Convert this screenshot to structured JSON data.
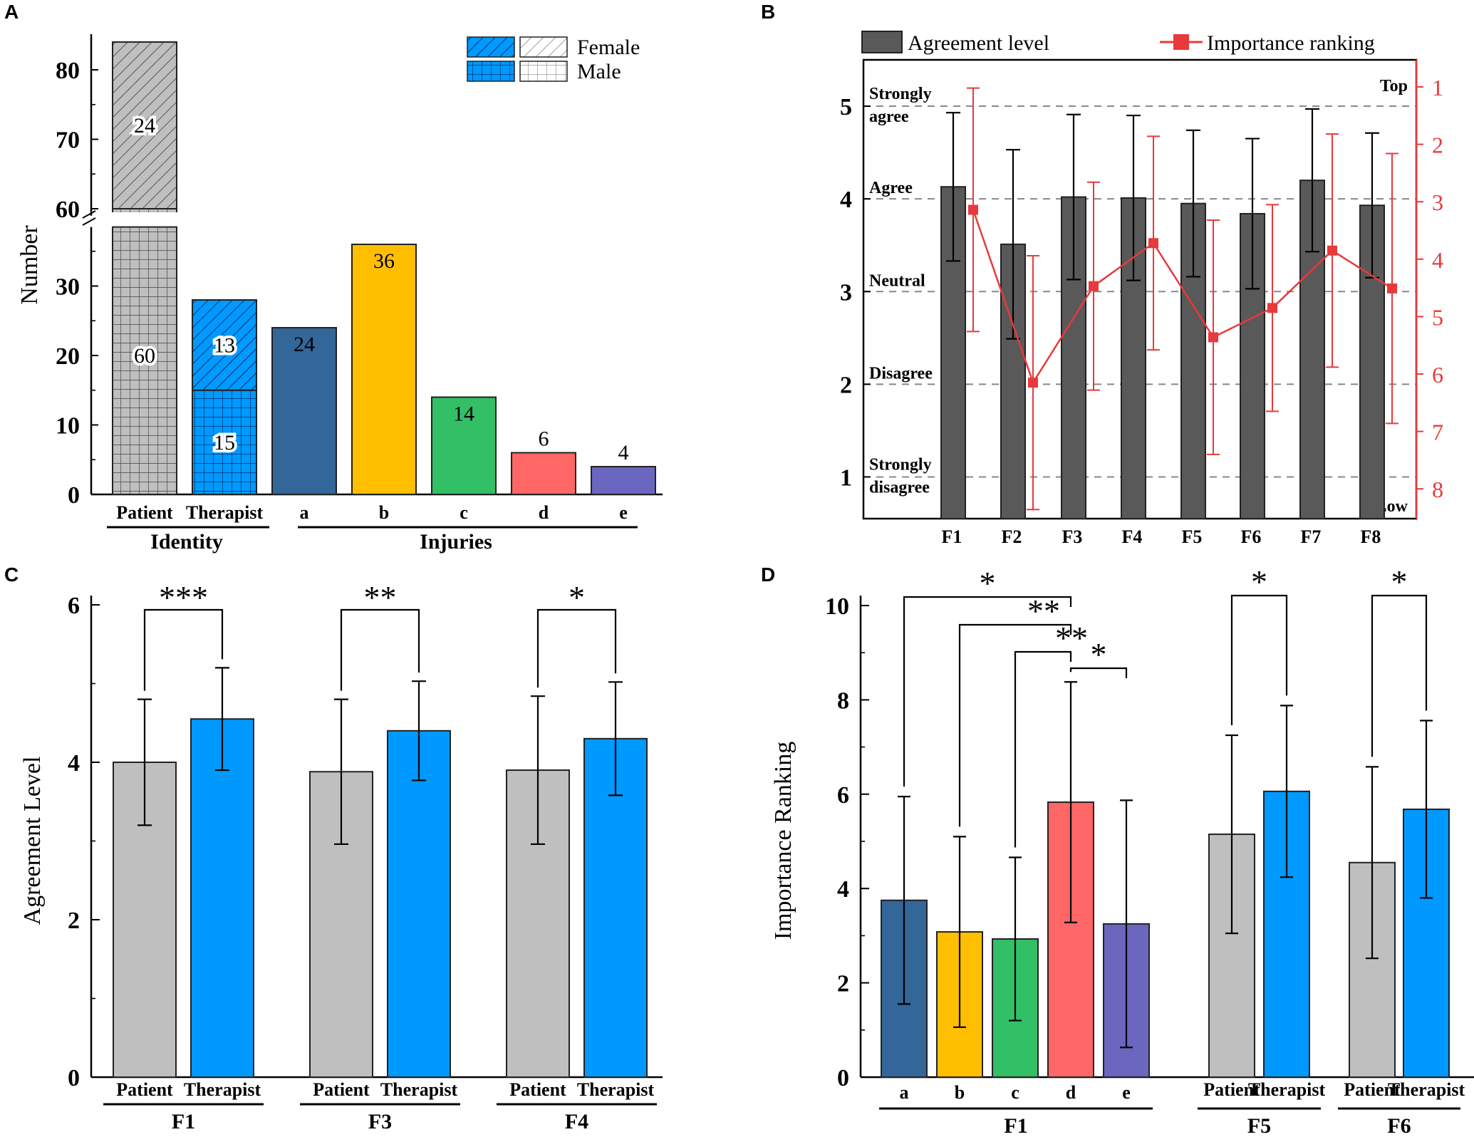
{
  "panels": {
    "A": "A",
    "B": "B",
    "C": "C",
    "D": "D"
  },
  "colors": {
    "dark_blue": "#336699",
    "yellow": "#ffbf00",
    "green": "#33bf66",
    "red": "#ff6666",
    "purple": "#6b66bf",
    "grey_bar": "#bfbfbf",
    "blue_bar": "#0099ff",
    "dark_grey": "#595959",
    "red_line": "#e8393c"
  },
  "chart_data": [
    {
      "panel": "A",
      "type": "bar",
      "ylabel": "Number",
      "y_ticks_lower": [
        0,
        10,
        20,
        30
      ],
      "y_ticks_upper": [
        60,
        70,
        80
      ],
      "axis_break": [
        38,
        59
      ],
      "legend": {
        "female": "Female",
        "male": "Male"
      },
      "categories": [
        "Patient",
        "Therapist",
        "a",
        "b",
        "c",
        "d",
        "e"
      ],
      "groups": [
        {
          "label": "Identity",
          "members": [
            "Patient",
            "Therapist"
          ]
        },
        {
          "label": "Injuries",
          "members": [
            "a",
            "b",
            "c",
            "d",
            "e"
          ]
        }
      ],
      "stacked": [
        {
          "category": "Patient",
          "male": 60,
          "female": 24,
          "male_label": "60",
          "female_label": "24"
        },
        {
          "category": "Therapist",
          "male": 15,
          "female": 13,
          "male_label": "15",
          "female_label": "13"
        }
      ],
      "injuries": [
        {
          "category": "a",
          "value": 24,
          "label": "24"
        },
        {
          "category": "b",
          "value": 36,
          "label": "36"
        },
        {
          "category": "c",
          "value": 14,
          "label": "14"
        },
        {
          "category": "d",
          "value": 6,
          "label": "6"
        },
        {
          "category": "e",
          "value": 4,
          "label": "4"
        }
      ]
    },
    {
      "panel": "B",
      "type": "bar",
      "legend": {
        "bar": "Agreement level",
        "line": "Importance ranking"
      },
      "categories": [
        "F1",
        "F2",
        "F3",
        "F4",
        "F5",
        "F6",
        "F7",
        "F8"
      ],
      "ylim": [
        0.55,
        5.5
      ],
      "y_ticks": [
        1,
        2,
        3,
        4,
        5
      ],
      "agreement_mean": [
        4.13,
        3.51,
        4.02,
        4.01,
        3.95,
        3.84,
        4.2,
        3.93
      ],
      "agreement_sd": [
        0.8,
        1.02,
        0.89,
        0.89,
        0.79,
        0.81,
        0.77,
        0.78
      ],
      "y2_range": [
        8.55,
        0.53
      ],
      "y2_ticks": [
        1,
        2,
        3,
        4,
        5,
        6,
        7,
        8
      ],
      "y2_top_label": "Top",
      "y2_bottom_label": "Low",
      "ranking_mean": [
        3.14,
        6.15,
        4.47,
        3.72,
        5.36,
        4.85,
        3.85,
        4.51
      ],
      "ranking_sd": [
        2.12,
        2.21,
        1.81,
        1.86,
        2.04,
        1.8,
        2.03,
        2.35
      ],
      "levels": [
        {
          "y": 5,
          "line1": "Strongly",
          "line2": "agree"
        },
        {
          "y": 4,
          "line1": "Agree",
          "line2": ""
        },
        {
          "y": 3,
          "line1": "Neutral",
          "line2": ""
        },
        {
          "y": 2,
          "line1": "Disagree",
          "line2": ""
        },
        {
          "y": 1,
          "line1": "Strongly",
          "line2": "disagree"
        }
      ]
    },
    {
      "panel": "C",
      "type": "bar",
      "ylabel": "Agreement Level",
      "ylim": [
        0,
        6
      ],
      "y_ticks": [
        0,
        2,
        4,
        6
      ],
      "groups": [
        {
          "label": "F1",
          "bars": [
            {
              "name": "Patient",
              "value": 4.0,
              "sd": 0.8
            },
            {
              "name": "Therapist",
              "value": 4.55,
              "sd": 0.65
            }
          ],
          "sig": "***"
        },
        {
          "label": "F3",
          "bars": [
            {
              "name": "Patient",
              "value": 3.88,
              "sd": 0.92
            },
            {
              "name": "Therapist",
              "value": 4.4,
              "sd": 0.63
            }
          ],
          "sig": "**"
        },
        {
          "label": "F4",
          "bars": [
            {
              "name": "Patient",
              "value": 3.9,
              "sd": 0.94
            },
            {
              "name": "Therapist",
              "value": 4.3,
              "sd": 0.72
            }
          ],
          "sig": "*"
        }
      ]
    },
    {
      "panel": "D",
      "type": "bar",
      "ylabel": "Importance Ranking",
      "ylim": [
        0,
        10
      ],
      "y_ticks": [
        0,
        2,
        4,
        6,
        8,
        10
      ],
      "groups": [
        {
          "label": "F1",
          "bars": [
            {
              "name": "a",
              "value": 3.75,
              "sd": 2.2
            },
            {
              "name": "b",
              "value": 3.08,
              "sd": 2.02
            },
            {
              "name": "c",
              "value": 2.93,
              "sd": 1.73
            },
            {
              "name": "d",
              "value": 5.83,
              "sd": 2.55
            },
            {
              "name": "e",
              "value": 3.25,
              "sd": 2.62
            }
          ]
        },
        {
          "label": "F5",
          "bars": [
            {
              "name": "Patient",
              "value": 5.15,
              "sd": 2.1
            },
            {
              "name": "Therapist",
              "value": 6.06,
              "sd": 1.82
            }
          ]
        },
        {
          "label": "F6",
          "bars": [
            {
              "name": "Patient",
              "value": 4.55,
              "sd": 2.03
            },
            {
              "name": "Therapist",
              "value": 5.68,
              "sd": 1.88
            }
          ]
        }
      ],
      "significance": [
        {
          "from": "a",
          "to": "d",
          "label": "*"
        },
        {
          "from": "b",
          "to": "d",
          "label": "**"
        },
        {
          "from": "c",
          "to": "d",
          "label": "**"
        },
        {
          "from": "d",
          "to": "e",
          "label": "*"
        },
        {
          "group": "F5",
          "label": "*"
        },
        {
          "group": "F6",
          "label": "*"
        }
      ]
    }
  ]
}
